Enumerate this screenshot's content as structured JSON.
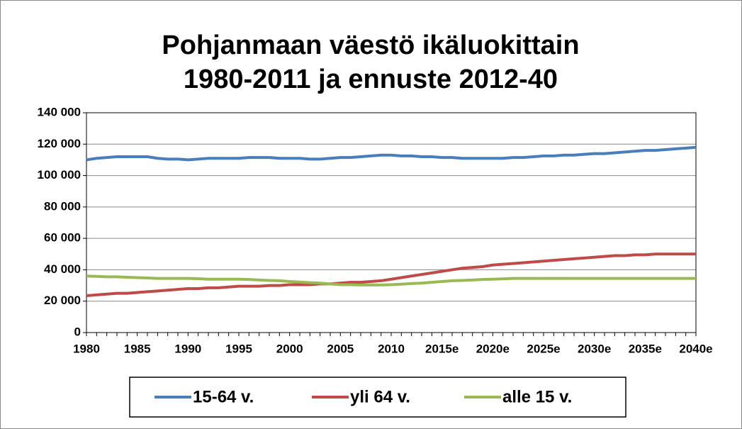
{
  "chart_data": {
    "type": "line",
    "title": "Pohjanmaan väestö ikäluokittain 1980-2011 ja ennuste 2012-40",
    "categories": [
      "1980",
      null,
      null,
      null,
      null,
      "1985",
      null,
      null,
      null,
      null,
      "1990",
      null,
      null,
      null,
      null,
      "1995",
      null,
      null,
      null,
      null,
      "2000",
      null,
      null,
      null,
      null,
      "2005",
      null,
      null,
      null,
      null,
      "2010",
      null,
      null,
      null,
      null,
      "2015e",
      null,
      null,
      null,
      null,
      "2020e",
      null,
      null,
      null,
      null,
      "2025e",
      null,
      null,
      null,
      null,
      "2030e",
      null,
      null,
      null,
      null,
      "2035e",
      null,
      null,
      null,
      null,
      "2040e"
    ],
    "series": [
      {
        "name": "15-64 v.",
        "color": "#4a7ebb",
        "values": [
          110000,
          111000,
          111500,
          112000,
          112000,
          112000,
          112000,
          111000,
          110500,
          110500,
          110000,
          110500,
          111000,
          111000,
          111000,
          111000,
          111500,
          111500,
          111500,
          111000,
          111000,
          111000,
          110500,
          110500,
          111000,
          111500,
          111500,
          112000,
          112500,
          113000,
          113000,
          112500,
          112500,
          112000,
          112000,
          111500,
          111500,
          111000,
          111000,
          111000,
          111000,
          111000,
          111500,
          111500,
          112000,
          112500,
          112500,
          113000,
          113000,
          113500,
          114000,
          114000,
          114500,
          115000,
          115500,
          116000,
          116000,
          116500,
          117000,
          117500,
          118000
        ]
      },
      {
        "name": "yli 64 v.",
        "color": "#be4b48",
        "values": [
          23500,
          24000,
          24500,
          25000,
          25000,
          25500,
          26000,
          26500,
          27000,
          27500,
          28000,
          28000,
          28500,
          28500,
          29000,
          29500,
          29500,
          29500,
          30000,
          30000,
          30500,
          30500,
          30500,
          31000,
          31000,
          31500,
          32000,
          32000,
          32500,
          33000,
          34000,
          35000,
          36000,
          37000,
          38000,
          39000,
          40000,
          41000,
          41500,
          42000,
          43000,
          43500,
          44000,
          44500,
          45000,
          45500,
          46000,
          46500,
          47000,
          47500,
          48000,
          48500,
          49000,
          49000,
          49500,
          49500,
          50000,
          50000,
          50000,
          50000,
          50000
        ]
      },
      {
        "name": "alle 15 v.",
        "color": "#98b954",
        "values": [
          36000,
          35800,
          35500,
          35500,
          35200,
          35000,
          34800,
          34500,
          34500,
          34500,
          34500,
          34300,
          34000,
          34000,
          34000,
          34000,
          33800,
          33500,
          33200,
          33000,
          32500,
          32200,
          31800,
          31500,
          31000,
          30500,
          30500,
          30300,
          30300,
          30300,
          30500,
          30800,
          31200,
          31500,
          32000,
          32500,
          33000,
          33200,
          33500,
          33800,
          34000,
          34200,
          34500,
          34500,
          34500,
          34500,
          34500,
          34500,
          34500,
          34500,
          34500,
          34500,
          34500,
          34500,
          34500,
          34500,
          34500,
          34500,
          34500,
          34500,
          34500
        ]
      }
    ],
    "ylim": [
      0,
      140000
    ],
    "yticks": [
      0,
      {
        "value": 20000,
        "label": "20 000"
      },
      {
        "value": 40000,
        "label": "40 000"
      },
      {
        "value": 60000,
        "label": "60 000"
      },
      {
        "value": 80000,
        "label": "80 000"
      },
      {
        "value": 100000,
        "label": "100 000"
      },
      {
        "value": 120000,
        "label": "120 000"
      },
      {
        "value": 140000,
        "label": "140 000"
      }
    ],
    "grid": true,
    "legend": "bottom"
  }
}
